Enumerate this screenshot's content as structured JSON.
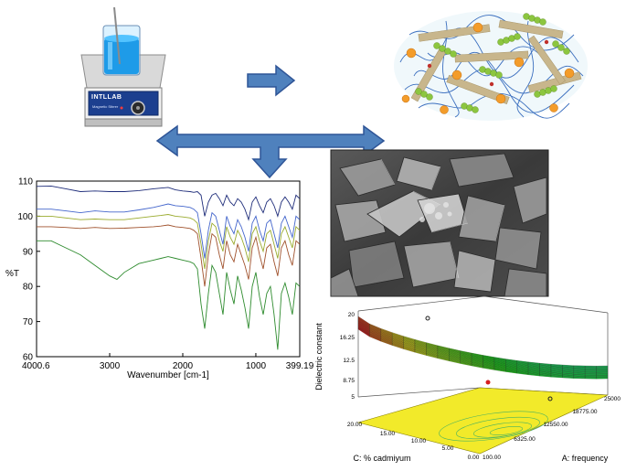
{
  "device": {
    "brand": "INTLLAB",
    "subtitle": "Magnetic Stirrer"
  },
  "ftir": {
    "ylabel": "%T",
    "xlabel": "Wavenumber [cm-1]",
    "x_tick_labels": [
      "4000.6",
      "3000",
      "2000",
      "1000",
      "399.19"
    ],
    "y_tick_labels": [
      "110",
      "100",
      "90",
      "80",
      "70",
      "60"
    ]
  },
  "surface": {
    "z_axis_label": "Dielectric constant",
    "a_axis_label": "A: frequency",
    "c_axis_label": "C: % cadmiyum",
    "z_tick_labels": [
      "20",
      "16.25",
      "12.5",
      "8.75",
      "5"
    ],
    "a_tick_labels": [
      "25000",
      "18775.00",
      "12550.00",
      "6325.00",
      "100.00"
    ],
    "c_tick_labels": [
      "20.00",
      "15.00",
      "10.00",
      "5.00",
      "0.00"
    ]
  },
  "colors": {
    "arrow_blue": "#4f81bd",
    "arrow_border": "#2f5597",
    "spectrum_navy": "#1f2d7a",
    "spectrum_blue": "#4466cc",
    "spectrum_yellowgreen": "#9aab2e",
    "spectrum_brown": "#a0522d",
    "spectrum_green": "#2e8b2e",
    "surface_floor": "#f2ea2a"
  },
  "chart_data": {
    "type": "line",
    "xlabel": "Wavenumber [cm-1]",
    "ylabel": "%T",
    "xlim": [
      4000.6,
      399.19
    ],
    "ylim": [
      60,
      110
    ],
    "series": [
      {
        "values_x": [
          4000,
          3800,
          3600,
          3400,
          3200,
          3000,
          2800,
          2600,
          2400,
          2300,
          2200,
          2100,
          2000,
          1900,
          1850,
          1800,
          1750,
          1700,
          1650,
          1600,
          1550,
          1500,
          1450,
          1400,
          1350,
          1300,
          1250,
          1200,
          1150,
          1100,
          1050,
          1000,
          950,
          900,
          850,
          800,
          750,
          700,
          650,
          600,
          550,
          500,
          450,
          400
        ],
        "values_y": [
          108.5,
          108.6,
          107.8,
          107,
          107.2,
          107,
          107,
          107.3,
          107.8,
          108,
          108.2,
          107.5,
          107.2,
          107,
          106.8,
          107,
          106,
          100,
          104,
          106,
          106.5,
          105,
          103,
          106,
          104,
          103,
          105,
          104,
          102,
          99,
          104,
          105.5,
          103,
          101,
          104,
          105,
          103,
          100,
          104,
          105.5,
          104,
          102,
          106,
          105
        ]
      },
      {
        "values_x": [
          4000,
          3800,
          3600,
          3400,
          3200,
          3000,
          2800,
          2600,
          2400,
          2300,
          2200,
          2100,
          2000,
          1900,
          1850,
          1800,
          1750,
          1700,
          1650,
          1600,
          1550,
          1500,
          1450,
          1400,
          1350,
          1300,
          1250,
          1200,
          1150,
          1100,
          1050,
          1000,
          950,
          900,
          850,
          800,
          750,
          700,
          650,
          600,
          550,
          500,
          450,
          400
        ],
        "values_y": [
          102,
          102,
          101.5,
          101,
          101.5,
          101.2,
          101.2,
          101.8,
          102.5,
          103,
          103.5,
          103,
          102.8,
          102.5,
          102,
          101,
          95,
          88,
          96,
          101,
          100,
          96,
          92,
          100,
          97,
          95,
          99,
          97,
          94,
          90,
          98,
          100,
          96,
          93,
          98,
          99,
          95,
          91,
          98,
          100,
          97,
          94,
          100,
          99
        ]
      },
      {
        "values_x": [
          4000,
          3800,
          3600,
          3400,
          3200,
          3000,
          2800,
          2600,
          2400,
          2300,
          2200,
          2100,
          2000,
          1900,
          1850,
          1800,
          1750,
          1700,
          1650,
          1600,
          1550,
          1500,
          1450,
          1400,
          1350,
          1300,
          1250,
          1200,
          1150,
          1100,
          1050,
          1000,
          950,
          900,
          850,
          800,
          750,
          700,
          650,
          600,
          550,
          500,
          450,
          400
        ],
        "values_y": [
          100,
          100,
          99.5,
          99,
          99.2,
          99,
          99,
          99.5,
          100,
          100.2,
          100.5,
          100,
          99.8,
          99.5,
          99,
          98,
          92,
          85,
          93,
          98,
          97,
          93,
          90,
          97,
          94,
          92,
          96,
          94,
          91,
          87,
          95,
          97,
          93,
          90,
          95,
          96,
          92,
          88,
          95,
          97,
          94,
          91,
          97,
          96
        ]
      },
      {
        "values_x": [
          4000,
          3800,
          3600,
          3400,
          3200,
          3000,
          2800,
          2600,
          2400,
          2300,
          2200,
          2100,
          2000,
          1900,
          1850,
          1800,
          1750,
          1700,
          1650,
          1600,
          1550,
          1500,
          1450,
          1400,
          1350,
          1300,
          1250,
          1200,
          1150,
          1100,
          1050,
          1000,
          950,
          900,
          850,
          800,
          750,
          700,
          650,
          600,
          550,
          500,
          450,
          400
        ],
        "values_y": [
          97,
          97,
          96.8,
          96.5,
          96.8,
          96.5,
          96.6,
          96.8,
          97,
          97.2,
          97.5,
          97,
          96.8,
          96.5,
          96,
          95,
          88,
          80,
          89,
          95,
          94,
          89,
          85,
          93,
          89,
          87,
          92,
          89,
          86,
          82,
          91,
          94,
          89,
          85,
          91,
          92,
          87,
          83,
          91,
          93,
          89,
          86,
          93,
          92
        ]
      },
      {
        "values_x": [
          4000,
          3800,
          3600,
          3400,
          3200,
          3000,
          2900,
          2800,
          2600,
          2400,
          2300,
          2200,
          2100,
          2000,
          1900,
          1850,
          1800,
          1750,
          1700,
          1650,
          1600,
          1550,
          1500,
          1450,
          1400,
          1350,
          1300,
          1250,
          1200,
          1150,
          1100,
          1050,
          1000,
          950,
          900,
          850,
          800,
          750,
          700,
          650,
          600,
          550,
          500,
          450,
          400
        ],
        "values_y": [
          93,
          93,
          91,
          89,
          86,
          83,
          82,
          84,
          86.5,
          87.5,
          88,
          88.5,
          88,
          87.5,
          87,
          86.5,
          85,
          75,
          68,
          78,
          86,
          84,
          78,
          72,
          84,
          79,
          75,
          83,
          79,
          74,
          68,
          80,
          84,
          77,
          72,
          78,
          80,
          72,
          62,
          78,
          81,
          77,
          72,
          81,
          80
        ]
      }
    ]
  }
}
